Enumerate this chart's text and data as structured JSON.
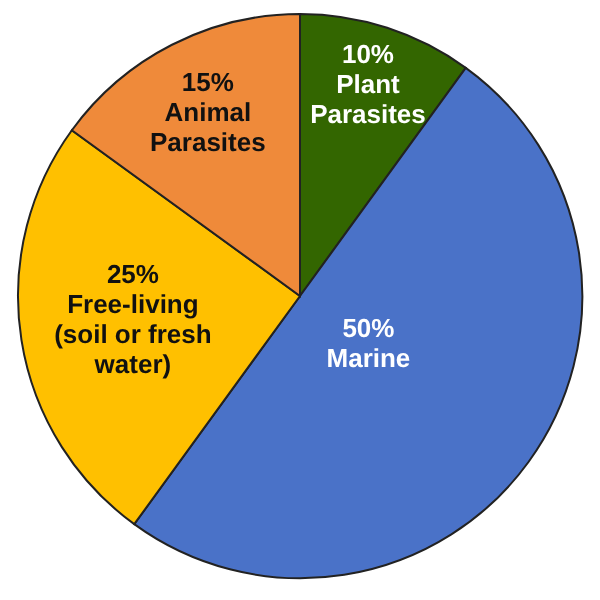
{
  "chart_data": {
    "type": "pie",
    "categories": [
      "Plant\nParasites",
      "Marine",
      "Free-living\n(soil or fresh\nwater)",
      "Animal\nParasites"
    ],
    "values": [
      10,
      50,
      25,
      15
    ],
    "colors": [
      "#336600",
      "#4a72c8",
      "#ffc000",
      "#ef8a3a"
    ],
    "value_labels": [
      "10%",
      "50%",
      "25%",
      "15%"
    ]
  }
}
